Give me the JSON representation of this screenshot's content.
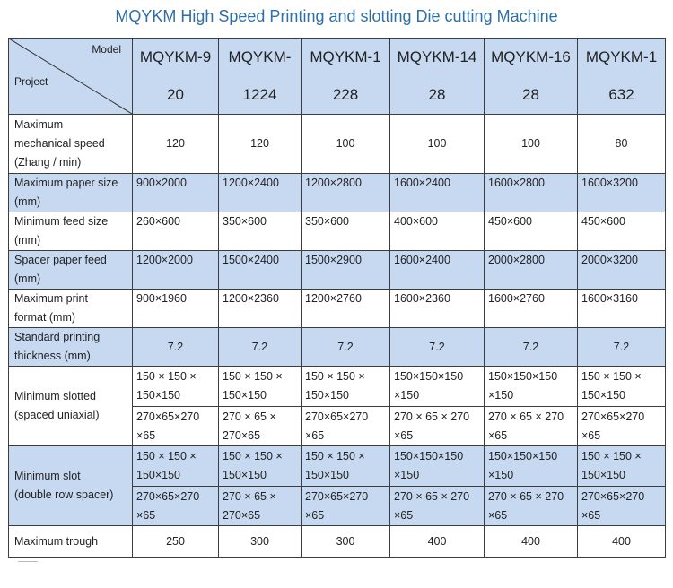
{
  "title": "MQYKM High Speed Printing and slotting Die cutting Machine",
  "header": {
    "model_label": "Model",
    "project_label": "Project",
    "models": [
      {
        "line1": "MQYKM-9",
        "line2": "20"
      },
      {
        "line1": "MQYKM-",
        "line2": "1224"
      },
      {
        "line1": "MQYKM-1",
        "line2": "228"
      },
      {
        "line1": "MQYKM-14",
        "line2": "28"
      },
      {
        "line1": "MQYKM-16",
        "line2": "28"
      },
      {
        "line1": "MQYKM-1",
        "line2": "632"
      }
    ]
  },
  "rows": {
    "speed": {
      "label": "Maximum\nmechanical speed\n(Zhang / min)",
      "values": [
        "120",
        "120",
        "100",
        "100",
        "100",
        "80"
      ]
    },
    "paper": {
      "label": "Maximum paper size\n(mm)",
      "values": [
        "900×2000",
        "1200×2400",
        "1200×2800",
        "1600×2400",
        "1600×2800",
        "1600×3200"
      ]
    },
    "feed": {
      "label": "Minimum feed size\n(mm)",
      "values": [
        "260×600",
        "350×600",
        "350×600",
        "400×600",
        "450×600",
        "450×600"
      ]
    },
    "spacer": {
      "label": "Spacer paper feed\n(mm)",
      "values": [
        "1200×2000",
        "1500×2400",
        "1500×2900",
        "1600×2400",
        "2000×2800",
        "2000×3200"
      ]
    },
    "print": {
      "label": "Maximum print\nformat (mm)",
      "values": [
        "900×1960",
        "1200×2360",
        "1200×2760",
        "1600×2360",
        "1600×2760",
        "1600×3160"
      ]
    },
    "thick": {
      "label": "Standard printing\nthickness (mm)",
      "values": [
        "7.2",
        "7.2",
        "7.2",
        "7.2",
        "7.2",
        "7.2"
      ]
    },
    "slotted": {
      "label": "Minimum slotted\n(spaced uniaxial)",
      "top": [
        "150 × 150 ×\n150×150",
        "150 × 150 ×\n150×150",
        "150 × 150 ×\n150×150",
        "150×150×150\n×150",
        "150×150×150\n×150",
        "150 × 150 ×\n150×150"
      ],
      "bottom": [
        "270×65×270\n×65",
        "270 × 65 ×\n270×65",
        "270×65×270\n×65",
        "270 × 65 × 270\n×65",
        "270 × 65 × 270\n×65",
        "270×65×270\n×65"
      ]
    },
    "slot": {
      "label": "Minimum slot\n(double row spacer)",
      "top": [
        "150 × 150 ×\n150×150",
        "150 × 150 ×\n150×150",
        "150 × 150 ×\n150×150",
        "150×150×150\n×150",
        "150×150×150\n×150",
        "150 × 150 ×\n150×150"
      ],
      "bottom": [
        "270×65×270\n×65",
        "270 × 65 ×\n270×65",
        "270×65×270\n×65",
        "270 × 65 × 270\n×65",
        "270 × 65 × 270\n×65",
        "270×65×270\n×65"
      ]
    },
    "trough": {
      "label": "Maximum trough",
      "values": [
        "250",
        "300",
        "300",
        "400",
        "400",
        "400"
      ]
    }
  }
}
